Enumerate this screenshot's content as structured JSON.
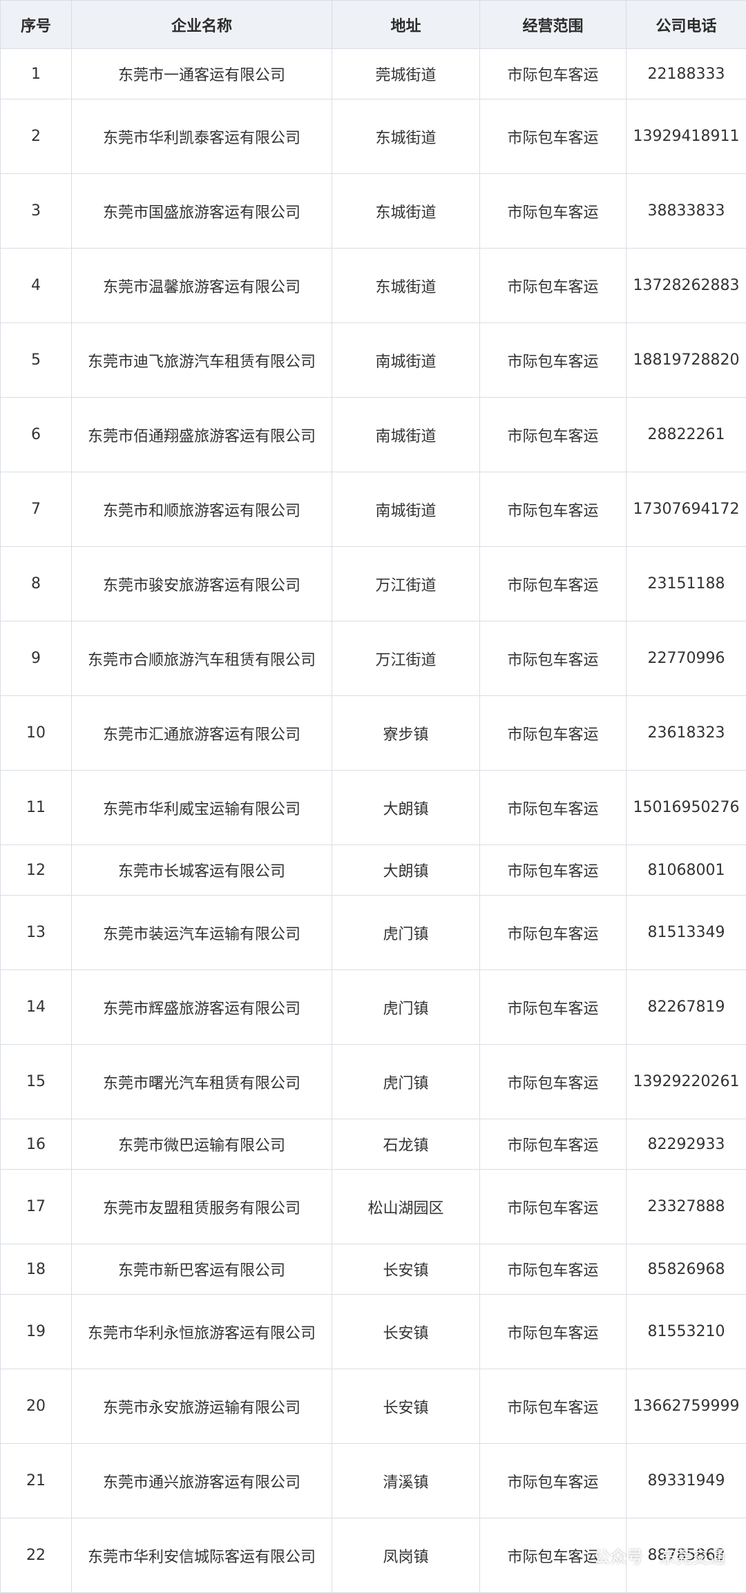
{
  "table": {
    "header": [
      "序号",
      "企业名称",
      "地址",
      "经营范围",
      "公司电话"
    ],
    "rows": [
      [
        "1",
        "东莞市一通客运有限公司",
        "莞城街道",
        "市际包车客运",
        "22188333"
      ],
      [
        "2",
        "东莞市华利凯泰客运有限公司",
        "东城街道",
        "市际包车客运",
        "13929418911"
      ],
      [
        "3",
        "东莞市国盛旅游客运有限公司",
        "东城街道",
        "市际包车客运",
        "38833833"
      ],
      [
        "4",
        "东莞市温馨旅游客运有限公司",
        "东城街道",
        "市际包车客运",
        "13728262883"
      ],
      [
        "5",
        "东莞市迪飞旅游汽车租赁有限公司",
        "南城街道",
        "市际包车客运",
        "18819728820"
      ],
      [
        "6",
        "东莞市佰通翔盛旅游客运有限公司",
        "南城街道",
        "市际包车客运",
        "28822261"
      ],
      [
        "7",
        "东莞市和顺旅游客运有限公司",
        "南城街道",
        "市际包车客运",
        "17307694172"
      ],
      [
        "8",
        "东莞市骏安旅游客运有限公司",
        "万江街道",
        "市际包车客运",
        "23151188"
      ],
      [
        "9",
        "东莞市合顺旅游汽车租赁有限公司",
        "万江街道",
        "市际包车客运",
        "22770996"
      ],
      [
        "10",
        "东莞市汇通旅游客运有限公司",
        "寮步镇",
        "市际包车客运",
        "23618323"
      ],
      [
        "11",
        "东莞市华利威宝运输有限公司",
        "大朗镇",
        "市际包车客运",
        "15016950276"
      ],
      [
        "12",
        "东莞市长城客运有限公司",
        "大朗镇",
        "市际包车客运",
        "81068001"
      ],
      [
        "13",
        "东莞市装运汽车运输有限公司",
        "虎门镇",
        "市际包车客运",
        "81513349"
      ],
      [
        "14",
        "东莞市辉盛旅游客运有限公司",
        "虎门镇",
        "市际包车客运",
        "82267819"
      ],
      [
        "15",
        "东莞市曙光汽车租赁有限公司",
        "虎门镇",
        "市际包车客运",
        "13929220261"
      ],
      [
        "16",
        "东莞市微巴运输有限公司",
        "石龙镇",
        "市际包车客运",
        "82292933"
      ],
      [
        "17",
        "东莞市友盟租赁服务有限公司",
        "松山湖园区",
        "市际包车客运",
        "23327888"
      ],
      [
        "18",
        "东莞市新巴客运有限公司",
        "长安镇",
        "市际包车客运",
        "85826968"
      ],
      [
        "19",
        "东莞市华利永恒旅游客运有限公司",
        "长安镇",
        "市际包车客运",
        "81553210"
      ],
      [
        "20",
        "东莞市永安旅游运输有限公司",
        "长安镇",
        "市际包车客运",
        "13662759999"
      ],
      [
        "21",
        "东莞市通兴旅游客运有限公司",
        "清溪镇",
        "市际包车客运",
        "89331949"
      ],
      [
        "22",
        "东莞市华利安信城际客运有限公司",
        "凤岗镇",
        "市际包车客运",
        "88785868"
      ]
    ]
  },
  "watermark": "公众号 · 东莞交通"
}
